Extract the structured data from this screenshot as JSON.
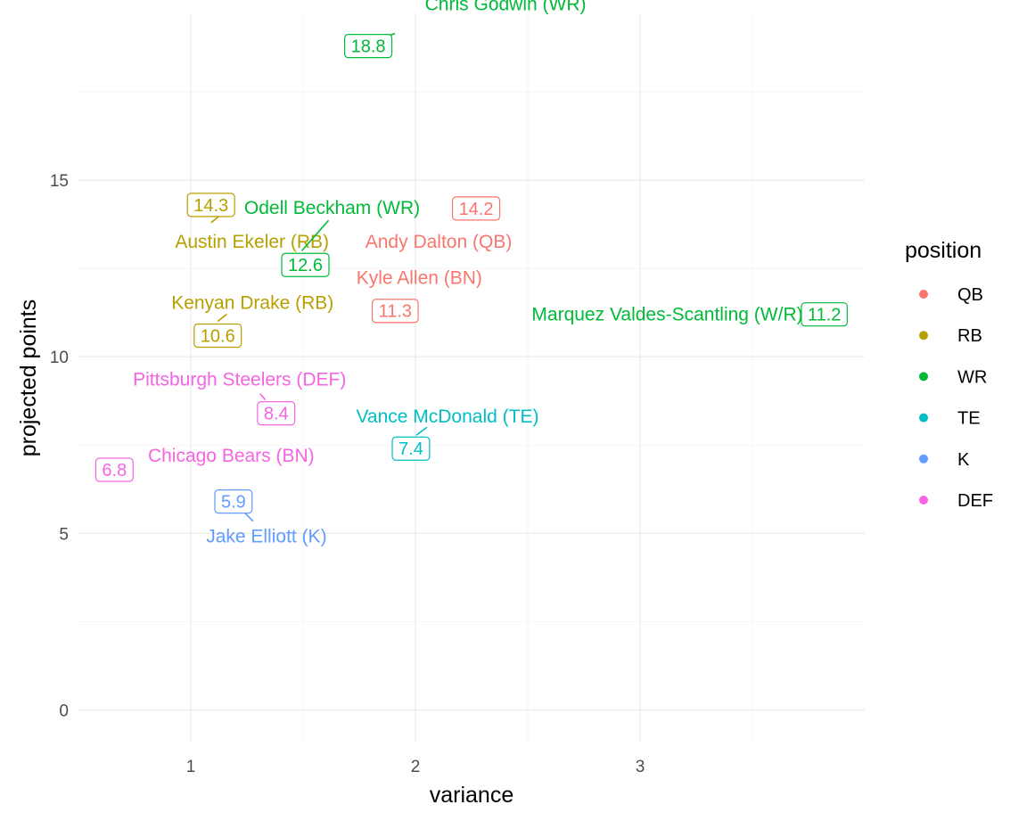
{
  "chart_data": {
    "type": "scatter",
    "xlabel": "variance",
    "ylabel": "projected points",
    "xlim": [
      0.5,
      4.0
    ],
    "ylim": [
      -0.9,
      19.7
    ],
    "x_ticks": [
      1,
      2,
      3
    ],
    "x_tick_labels": [
      "1",
      "2",
      "3"
    ],
    "y_ticks": [
      0,
      5,
      10,
      15
    ],
    "y_tick_labels": [
      "0",
      "5",
      "10",
      "15"
    ],
    "grid": true,
    "legend": {
      "title": "position",
      "placement": "right",
      "entries": [
        {
          "label": "QB",
          "color": "#F8766D"
        },
        {
          "label": "RB",
          "color": "#B79F00"
        },
        {
          "label": "WR",
          "color": "#00BA38"
        },
        {
          "label": "TE",
          "color": "#00BFC4"
        },
        {
          "label": "K",
          "color": "#619CFF"
        },
        {
          "label": "DEF",
          "color": "#F564E3"
        }
      ]
    },
    "points": [
      {
        "name": "Chris Godwin (WR)",
        "position": "WR",
        "x": 1.79,
        "y": 18.8,
        "value_label": "18.8"
      },
      {
        "name": "Austin Ekeler (RB)",
        "position": "RB",
        "x": 1.09,
        "y": 14.3,
        "value_label": "14.3"
      },
      {
        "name": "Andy Dalton (QB)",
        "position": "QB",
        "x": 2.27,
        "y": 14.2,
        "value_label": "14.2"
      },
      {
        "name": "Odell Beckham (WR)",
        "position": "WR",
        "x": 1.51,
        "y": 12.6,
        "value_label": "12.6"
      },
      {
        "name": "Kyle Allen (BN)",
        "position": "QB",
        "x": 1.91,
        "y": 11.3,
        "value_label": "11.3"
      },
      {
        "name": "Marquez Valdes-Scantling (W/R)",
        "position": "WR",
        "x": 3.82,
        "y": 11.2,
        "value_label": "11.2"
      },
      {
        "name": "Kenyan Drake (RB)",
        "position": "RB",
        "x": 1.12,
        "y": 10.6,
        "value_label": "10.6"
      },
      {
        "name": "Pittsburgh Steelers (DEF)",
        "position": "DEF",
        "x": 1.38,
        "y": 8.4,
        "value_label": "8.4"
      },
      {
        "name": "Vance McDonald (TE)",
        "position": "TE",
        "x": 1.98,
        "y": 7.4,
        "value_label": "7.4"
      },
      {
        "name": "Chicago Bears (BN)",
        "position": "DEF",
        "x": 0.66,
        "y": 6.8,
        "value_label": "6.8"
      },
      {
        "name": "Jake Elliott (K)",
        "position": "K",
        "x": 1.19,
        "y": 5.9,
        "value_label": "5.9"
      }
    ]
  }
}
